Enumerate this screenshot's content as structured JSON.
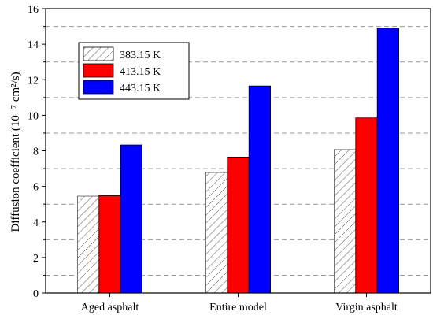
{
  "chart_data": {
    "type": "bar",
    "categories": [
      "Aged asphalt",
      "Entire model",
      "Virgin asphalt"
    ],
    "series": [
      {
        "name": "383.15 K",
        "values": [
          5.45,
          6.78,
          8.07
        ],
        "color": "#ffffff",
        "pattern": "hatch"
      },
      {
        "name": "413.15 K",
        "values": [
          5.48,
          7.65,
          9.85
        ],
        "color": "#ff0000",
        "pattern": "solid"
      },
      {
        "name": "443.15 K",
        "values": [
          8.33,
          11.65,
          14.9
        ],
        "color": "#0000ff",
        "pattern": "solid"
      }
    ],
    "ylabel": "Diffusion coefficient (10⁻⁷ cm²/s)",
    "ylim": [
      0,
      16
    ],
    "yticks": [
      0,
      2,
      4,
      6,
      8,
      10,
      12,
      14,
      16
    ],
    "grid_values": [
      1,
      3,
      5,
      7,
      9,
      11,
      13,
      15
    ],
    "grid": "horizontal dashed",
    "legend_position": "top-left"
  }
}
